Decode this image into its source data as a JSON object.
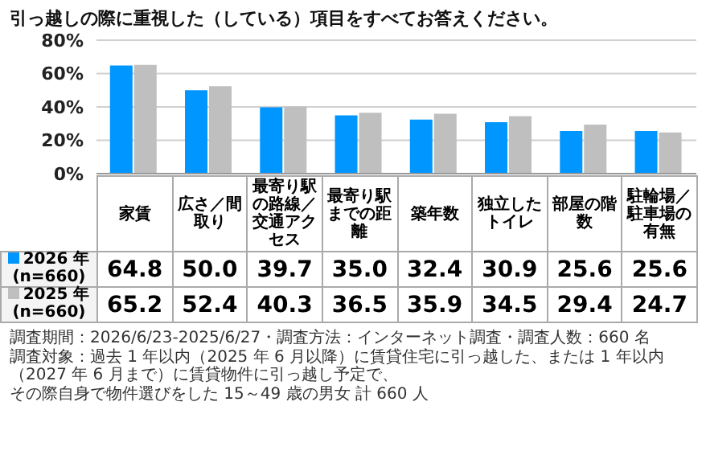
{
  "chart_data": {
    "type": "bar",
    "title": "引っ越しの際に重視した（している）項目をすべてお答えください。",
    "categories": [
      "家賃",
      "広さ／間取り",
      "最寄り駅の路線／交通アクセス",
      "最寄り駅までの距離",
      "築年数",
      "独立したトイレ",
      "部屋の階数",
      "駐輪場／駐車場の有無"
    ],
    "series": [
      {
        "name": "2026 年 (n=660)",
        "color": "#0096ff",
        "values": [
          64.8,
          50.0,
          39.7,
          35.0,
          32.4,
          30.9,
          25.6,
          25.6
        ],
        "value_labels": [
          "64.8",
          "50.0",
          "39.7",
          "35.0",
          "32.4",
          "30.9",
          "25.6",
          "25.6"
        ]
      },
      {
        "name": "2025 年 (n=660)",
        "color": "#bfbfbf",
        "values": [
          65.2,
          52.4,
          40.3,
          36.5,
          35.9,
          34.5,
          29.4,
          24.7
        ],
        "value_labels": [
          "65.2",
          "52.4",
          "40.3",
          "36.5",
          "35.9",
          "34.5",
          "29.4",
          "24.7"
        ]
      }
    ],
    "ylim": [
      0,
      80
    ],
    "yticks": [
      {
        "value": 0,
        "label": "0%"
      },
      {
        "value": 20,
        "label": "20%"
      },
      {
        "value": 40,
        "label": "40%"
      },
      {
        "value": 60,
        "label": "60%"
      },
      {
        "value": 80,
        "label": "80%"
      }
    ],
    "grid": "y",
    "legend": "bottom",
    "annotations": [
      "調査期間：2026/6/23-2025/6/27・調査方法：インターネット調査・調査人数：660 名",
      "調査対象：過去 1 年以内（2025 年 6 月以降）に賃貸住宅に引っ越した、または 1 年以内（2027 年 6 月まで）に賃貸物件に引っ越し予定で、",
      "その際自身で物件選びをした 15～49 歳の男女 計 660 人"
    ]
  }
}
